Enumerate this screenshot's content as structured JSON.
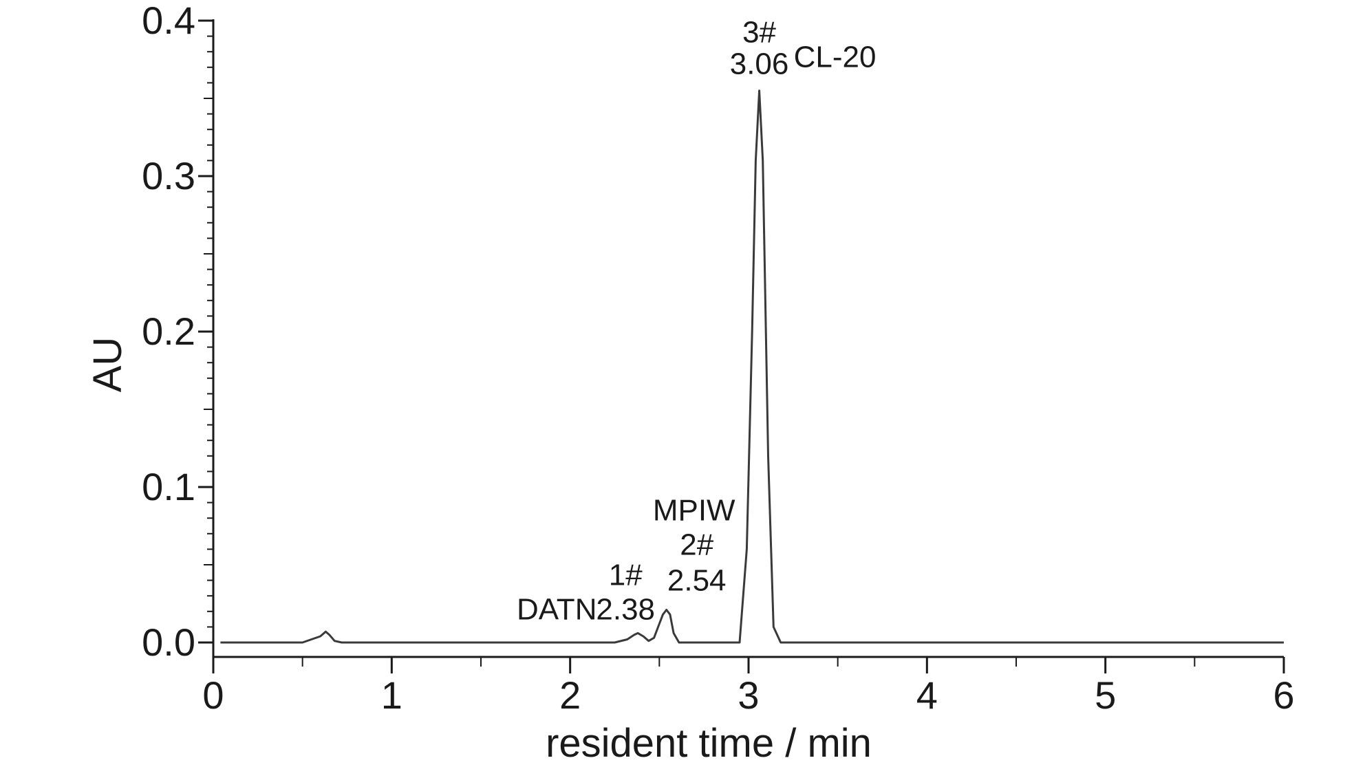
{
  "chart_data": {
    "type": "line",
    "xlabel": "resident time / min",
    "ylabel": "AU",
    "xlim": [
      0,
      6
    ],
    "ylim": [
      -0.01,
      0.4
    ],
    "x_ticks": [
      "0",
      "1",
      "2",
      "3",
      "4",
      "5",
      "6"
    ],
    "y_ticks": [
      "0.0",
      "0.1",
      "0.2",
      "0.3",
      "0.4"
    ],
    "grid": false,
    "line_color": "#3a3a3a",
    "series": [
      {
        "x": [
          0.04,
          0.5,
          0.55,
          0.6,
          0.63,
          0.65,
          0.68,
          0.72,
          2.25,
          2.32,
          2.36,
          2.38,
          2.41,
          2.44,
          2.47,
          2.5,
          2.52,
          2.54,
          2.56,
          2.58,
          2.61,
          2.95,
          2.99,
          3.02,
          3.04,
          3.06,
          3.08,
          3.11,
          3.14,
          3.18,
          3.25,
          6.0
        ],
        "y": [
          0.0,
          0.0,
          0.002,
          0.004,
          0.007,
          0.005,
          0.001,
          0.0,
          0.0,
          0.002,
          0.005,
          0.006,
          0.004,
          0.001,
          0.003,
          0.012,
          0.018,
          0.021,
          0.018,
          0.006,
          0.0,
          0.0,
          0.06,
          0.2,
          0.31,
          0.355,
          0.31,
          0.12,
          0.01,
          0.0,
          0.0,
          0.0
        ]
      }
    ],
    "annotations": [
      {
        "x": 3.06,
        "y": 0.355,
        "lines": [
          "3#",
          "3.06"
        ],
        "compound": "CL-20"
      },
      {
        "x": 2.54,
        "y": 0.021,
        "lines": [
          "2#",
          "2.54"
        ],
        "compound": "MPIW"
      },
      {
        "x": 2.38,
        "y": 0.006,
        "lines": [
          "1#",
          "2.38"
        ],
        "compound": "DATN"
      }
    ]
  }
}
